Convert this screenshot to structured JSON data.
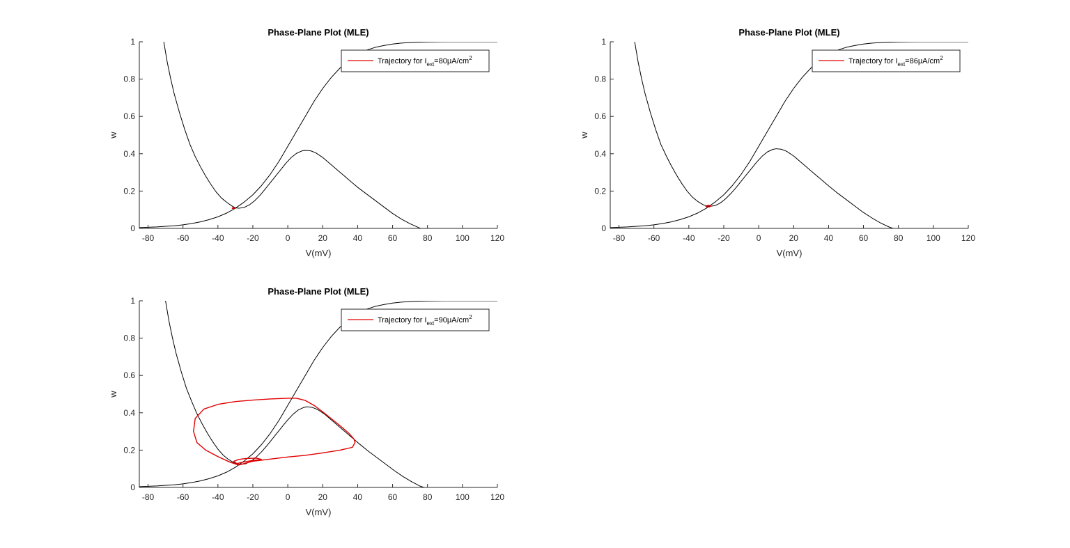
{
  "colors": {
    "nullcline": "#000000",
    "trajectory": "#e00000",
    "axis": "#262626",
    "background": "#ffffff"
  },
  "chart_data": [
    {
      "type": "line",
      "title": "Phase-Plane Plot (MLE)",
      "xlabel": "V(mV)",
      "ylabel": "w",
      "xlim": [
        -85,
        120
      ],
      "ylim": [
        0,
        1
      ],
      "xticks": [
        -80,
        -60,
        -40,
        -20,
        0,
        20,
        40,
        60,
        80,
        100,
        120
      ],
      "yticks": [
        0,
        0.2,
        0.4,
        0.6,
        0.8,
        1
      ],
      "xtick_labels": [
        "-80",
        "-60",
        "-40",
        "-20",
        "0",
        "20",
        "40",
        "60",
        "80",
        "100",
        "120"
      ],
      "ytick_labels": [
        "0",
        "0.2",
        "0.4",
        "0.6",
        "0.8",
        "1"
      ],
      "grid": false,
      "legend": {
        "placement": "top-right",
        "prefix": "Trajectory for I",
        "sub": "ext",
        "suffix": "=80μA/cm",
        "sup": "2"
      },
      "series": [
        {
          "x": [
            -85,
            -80,
            -75,
            -70,
            -65,
            -60,
            -55,
            -50,
            -45,
            -40,
            -35,
            -30,
            -25,
            -20,
            -15,
            -10,
            -5,
            0,
            5,
            10,
            15,
            20,
            25,
            30,
            35,
            40,
            45,
            50,
            55,
            60,
            65,
            70,
            75,
            80,
            85,
            90,
            95,
            100,
            105,
            110,
            115,
            120
          ],
          "y": [
            0.004,
            0.006,
            0.008,
            0.011,
            0.014,
            0.019,
            0.026,
            0.035,
            0.047,
            0.062,
            0.082,
            0.108,
            0.141,
            0.18,
            0.23,
            0.29,
            0.36,
            0.44,
            0.52,
            0.6,
            0.68,
            0.75,
            0.81,
            0.86,
            0.9,
            0.93,
            0.955,
            0.97,
            0.98,
            0.988,
            0.993,
            0.996,
            0.998,
            0.999,
            0.9995,
            1.0,
            1.0,
            1.0,
            1.0,
            1.0,
            1.0,
            1.0
          ]
        },
        {
          "x": [
            -71,
            -69,
            -67,
            -65,
            -62,
            -59,
            -56,
            -53,
            -50,
            -47,
            -44,
            -41,
            -38,
            -35,
            -32,
            -30,
            -28,
            -25,
            -22,
            -19,
            -16,
            -13,
            -10,
            -7,
            -4,
            -1,
            2,
            5,
            8,
            10,
            13,
            16,
            20,
            25,
            30,
            35,
            40,
            45,
            50,
            55,
            60,
            65,
            70,
            75,
            76
          ],
          "y": [
            1.0,
            0.89,
            0.8,
            0.72,
            0.62,
            0.53,
            0.45,
            0.385,
            0.33,
            0.28,
            0.235,
            0.195,
            0.163,
            0.14,
            0.12,
            0.11,
            0.108,
            0.112,
            0.126,
            0.148,
            0.176,
            0.21,
            0.245,
            0.28,
            0.315,
            0.35,
            0.38,
            0.402,
            0.415,
            0.418,
            0.416,
            0.405,
            0.38,
            0.34,
            0.3,
            0.26,
            0.22,
            0.185,
            0.15,
            0.115,
            0.08,
            0.05,
            0.025,
            0.004,
            0.0
          ]
        },
        {
          "x": [
            -32,
            -31.2,
            -30.5,
            -30.8,
            -31.6,
            -32
          ],
          "y": [
            0.108,
            0.112,
            0.11,
            0.106,
            0.107,
            0.108
          ]
        }
      ]
    },
    {
      "type": "line",
      "title": "Phase-Plane Plot (MLE)",
      "xlabel": "V(mV)",
      "ylabel": "w",
      "xlim": [
        -85,
        120
      ],
      "ylim": [
        0,
        1
      ],
      "xticks": [
        -80,
        -60,
        -40,
        -20,
        0,
        20,
        40,
        60,
        80,
        100,
        120
      ],
      "yticks": [
        0,
        0.2,
        0.4,
        0.6,
        0.8,
        1
      ],
      "xtick_labels": [
        "-80",
        "-60",
        "-40",
        "-20",
        "0",
        "20",
        "40",
        "60",
        "80",
        "100",
        "120"
      ],
      "ytick_labels": [
        "0",
        "0.2",
        "0.4",
        "0.6",
        "0.8",
        "1"
      ],
      "grid": false,
      "legend": {
        "placement": "top-right",
        "prefix": "Trajectory for I",
        "sub": "ext",
        "suffix": "=86μA/cm",
        "sup": "2"
      },
      "series": [
        {
          "x": [
            -85,
            -80,
            -75,
            -70,
            -65,
            -60,
            -55,
            -50,
            -45,
            -40,
            -35,
            -30,
            -25,
            -20,
            -15,
            -10,
            -5,
            0,
            5,
            10,
            15,
            20,
            25,
            30,
            35,
            40,
            45,
            50,
            55,
            60,
            65,
            70,
            75,
            80,
            85,
            90,
            95,
            100,
            105,
            110,
            115,
            120
          ],
          "y": [
            0.004,
            0.006,
            0.008,
            0.011,
            0.014,
            0.019,
            0.026,
            0.035,
            0.047,
            0.062,
            0.082,
            0.108,
            0.141,
            0.18,
            0.23,
            0.29,
            0.36,
            0.44,
            0.52,
            0.6,
            0.68,
            0.75,
            0.81,
            0.86,
            0.9,
            0.93,
            0.955,
            0.97,
            0.98,
            0.988,
            0.993,
            0.996,
            0.998,
            0.999,
            0.9995,
            1.0,
            1.0,
            1.0,
            1.0,
            1.0,
            1.0,
            1.0
          ]
        },
        {
          "x": [
            -71,
            -69,
            -67,
            -65,
            -62,
            -59,
            -56,
            -53,
            -50,
            -47,
            -44,
            -41,
            -38,
            -35,
            -32,
            -30,
            -28,
            -25,
            -22,
            -19,
            -16,
            -13,
            -10,
            -7,
            -4,
            -1,
            2,
            5,
            8,
            10,
            13,
            16,
            20,
            25,
            30,
            35,
            40,
            45,
            50,
            55,
            60,
            65,
            70,
            75,
            77
          ],
          "y": [
            1.0,
            0.89,
            0.8,
            0.72,
            0.62,
            0.53,
            0.45,
            0.39,
            0.335,
            0.285,
            0.24,
            0.2,
            0.168,
            0.145,
            0.128,
            0.12,
            0.118,
            0.122,
            0.136,
            0.158,
            0.186,
            0.218,
            0.253,
            0.288,
            0.322,
            0.357,
            0.387,
            0.41,
            0.423,
            0.427,
            0.424,
            0.413,
            0.388,
            0.348,
            0.308,
            0.268,
            0.228,
            0.19,
            0.155,
            0.12,
            0.085,
            0.055,
            0.028,
            0.006,
            0.0
          ]
        },
        {
          "x": [
            -30.5,
            -29,
            -27.5,
            -28,
            -29.5,
            -30.5
          ],
          "y": [
            0.119,
            0.124,
            0.122,
            0.116,
            0.115,
            0.119
          ]
        }
      ]
    },
    {
      "type": "line",
      "title": "Phase-Plane Plot (MLE)",
      "xlabel": "V(mV)",
      "ylabel": "w",
      "xlim": [
        -85,
        120
      ],
      "ylim": [
        0,
        1
      ],
      "xticks": [
        -80,
        -60,
        -40,
        -20,
        0,
        20,
        40,
        60,
        80,
        100,
        120
      ],
      "yticks": [
        0,
        0.2,
        0.4,
        0.6,
        0.8,
        1
      ],
      "xtick_labels": [
        "-80",
        "-60",
        "-40",
        "-20",
        "0",
        "20",
        "40",
        "60",
        "80",
        "100",
        "120"
      ],
      "ytick_labels": [
        "0",
        "0.2",
        "0.4",
        "0.6",
        "0.8",
        "1"
      ],
      "grid": false,
      "legend": {
        "placement": "top-right",
        "prefix": "Trajectory for I",
        "sub": "ext",
        "suffix": "=90μA/cm",
        "sup": "2"
      },
      "series": [
        {
          "x": [
            -85,
            -80,
            -75,
            -70,
            -65,
            -60,
            -55,
            -50,
            -45,
            -40,
            -35,
            -30,
            -25,
            -20,
            -15,
            -10,
            -5,
            0,
            5,
            10,
            15,
            20,
            25,
            30,
            35,
            40,
            45,
            50,
            55,
            60,
            65,
            70,
            75,
            80,
            85,
            90,
            95,
            100,
            105,
            110,
            115,
            120
          ],
          "y": [
            0.004,
            0.006,
            0.008,
            0.011,
            0.014,
            0.019,
            0.026,
            0.035,
            0.047,
            0.062,
            0.082,
            0.108,
            0.141,
            0.18,
            0.23,
            0.29,
            0.36,
            0.44,
            0.52,
            0.6,
            0.68,
            0.75,
            0.81,
            0.86,
            0.9,
            0.93,
            0.955,
            0.97,
            0.98,
            0.988,
            0.993,
            0.996,
            0.998,
            0.999,
            0.9995,
            1.0,
            1.0,
            1.0,
            1.0,
            1.0,
            1.0,
            1.0
          ]
        },
        {
          "x": [
            -70,
            -68,
            -66,
            -64,
            -61,
            -58,
            -55,
            -52,
            -49,
            -46,
            -43,
            -40,
            -37,
            -34,
            -31,
            -29,
            -27,
            -24,
            -21,
            -18,
            -15,
            -12,
            -9,
            -6,
            -3,
            0,
            3,
            6,
            9,
            11,
            14,
            17,
            21,
            26,
            31,
            36,
            41,
            46,
            51,
            56,
            61,
            66,
            71,
            76,
            78
          ],
          "y": [
            1.0,
            0.89,
            0.8,
            0.72,
            0.62,
            0.53,
            0.46,
            0.395,
            0.34,
            0.29,
            0.245,
            0.205,
            0.173,
            0.15,
            0.133,
            0.125,
            0.123,
            0.127,
            0.141,
            0.163,
            0.191,
            0.223,
            0.258,
            0.293,
            0.328,
            0.362,
            0.392,
            0.415,
            0.428,
            0.432,
            0.429,
            0.418,
            0.393,
            0.353,
            0.313,
            0.273,
            0.233,
            0.195,
            0.16,
            0.125,
            0.09,
            0.058,
            0.03,
            0.006,
            0.0
          ]
        },
        {
          "x": [
            -28,
            -33,
            -40,
            -47,
            -52,
            -54,
            -53,
            -48,
            -40,
            -30,
            -20,
            -10,
            0,
            5,
            10,
            15,
            20,
            25,
            30,
            35,
            38,
            38.5,
            37,
            30,
            20,
            10,
            0,
            -10,
            -20,
            -25,
            -28,
            -30,
            -27,
            -20,
            -15,
            -18,
            -24,
            -28,
            -31,
            -28
          ],
          "y": [
            0.12,
            0.135,
            0.165,
            0.2,
            0.24,
            0.3,
            0.37,
            0.42,
            0.445,
            0.46,
            0.468,
            0.474,
            0.478,
            0.478,
            0.466,
            0.44,
            0.405,
            0.368,
            0.33,
            0.29,
            0.258,
            0.24,
            0.215,
            0.2,
            0.185,
            0.172,
            0.163,
            0.152,
            0.14,
            0.128,
            0.12,
            0.125,
            0.133,
            0.145,
            0.15,
            0.157,
            0.155,
            0.15,
            0.14,
            0.12
          ]
        }
      ]
    }
  ]
}
